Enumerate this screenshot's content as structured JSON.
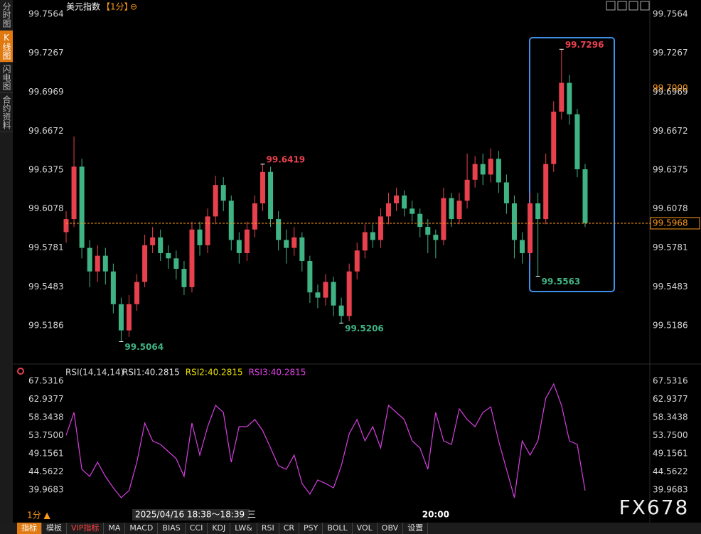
{
  "sidebar": [
    "分时图",
    "K线图",
    "闪电图",
    "合约资料"
  ],
  "toolbar": [
    "指标",
    "模板",
    "VIP指标",
    "MA",
    "MACD",
    "BIAS",
    "CCI",
    "KDJ",
    "LW&",
    "RSI",
    "CR",
    "PSY",
    "BOLL",
    "VOL",
    "OBV",
    "设置"
  ],
  "watermark": "FX678",
  "period_label": "1分 ▲",
  "chart_data": [
    {
      "type": "candlestick",
      "title": "美元指数",
      "period": "【1分】",
      "zoom_icon": "⊖",
      "up_color": "#e8414e",
      "down_color": "#3fb383",
      "open": [
        99.59,
        99.6,
        99.64,
        99.578,
        99.56,
        99.572,
        99.56,
        99.535,
        99.515,
        99.535,
        99.552,
        99.58,
        99.586,
        99.574,
        99.57,
        99.562,
        99.548,
        99.592,
        99.58,
        99.602,
        99.626,
        99.614,
        99.584,
        99.574,
        99.592,
        99.612,
        99.636,
        99.6,
        99.584,
        99.578,
        99.586,
        99.568,
        99.544,
        99.54,
        99.552,
        99.534,
        99.526,
        99.56,
        99.576,
        99.59,
        99.584,
        99.602,
        99.612,
        99.618,
        99.608,
        99.604,
        99.594,
        99.588,
        99.584,
        99.616,
        99.6,
        99.614,
        99.63,
        99.642,
        99.634,
        99.646,
        99.628,
        99.612,
        99.584,
        99.574,
        99.612,
        99.6,
        99.642,
        99.682,
        99.704,
        99.68,
        99.638
      ],
      "high": [
        99.606,
        99.663,
        99.646,
        99.584,
        99.58,
        99.578,
        99.566,
        99.54,
        99.542,
        99.558,
        99.588,
        99.594,
        99.592,
        99.58,
        99.576,
        99.568,
        99.598,
        99.598,
        99.608,
        99.633,
        99.632,
        99.618,
        99.59,
        99.598,
        99.618,
        99.6419,
        99.64,
        99.606,
        99.592,
        99.594,
        99.59,
        99.572,
        99.55,
        99.558,
        99.556,
        99.54,
        99.566,
        99.582,
        99.596,
        99.596,
        99.608,
        99.62,
        99.624,
        99.622,
        99.614,
        99.608,
        99.6,
        99.592,
        99.624,
        99.62,
        99.62,
        99.65,
        99.648,
        99.65,
        99.654,
        99.652,
        99.634,
        99.618,
        99.59,
        99.62,
        99.62,
        99.65,
        99.69,
        99.7296,
        99.71,
        99.684,
        99.642
      ],
      "low": [
        99.582,
        99.594,
        99.57,
        99.548,
        99.552,
        99.55,
        99.528,
        99.5064,
        99.51,
        99.53,
        99.548,
        99.574,
        99.568,
        99.562,
        99.554,
        99.542,
        99.544,
        99.572,
        99.574,
        99.596,
        99.606,
        99.576,
        99.566,
        99.568,
        99.586,
        99.606,
        99.594,
        99.576,
        99.566,
        99.572,
        99.56,
        99.536,
        99.532,
        99.534,
        99.526,
        99.5206,
        99.522,
        99.554,
        99.57,
        99.578,
        99.578,
        99.596,
        99.606,
        99.602,
        99.598,
        99.586,
        99.574,
        99.57,
        99.58,
        99.594,
        99.596,
        99.608,
        99.624,
        99.626,
        99.628,
        99.62,
        99.604,
        99.57,
        99.566,
        99.568,
        99.5563,
        99.596,
        99.636,
        99.676,
        99.672,
        99.632,
        99.594
      ],
      "close": [
        99.6,
        99.64,
        99.578,
        99.56,
        99.572,
        99.56,
        99.535,
        99.515,
        99.535,
        99.552,
        99.58,
        99.586,
        99.574,
        99.57,
        99.562,
        99.548,
        99.592,
        99.58,
        99.602,
        99.626,
        99.614,
        99.584,
        99.574,
        99.592,
        99.612,
        99.636,
        99.6,
        99.584,
        99.578,
        99.586,
        99.568,
        99.544,
        99.54,
        99.552,
        99.534,
        99.526,
        99.56,
        99.576,
        99.59,
        99.584,
        99.602,
        99.612,
        99.618,
        99.608,
        99.604,
        99.594,
        99.588,
        99.584,
        99.616,
        99.6,
        99.614,
        99.63,
        99.642,
        99.634,
        99.646,
        99.628,
        99.612,
        99.584,
        99.574,
        99.612,
        99.6,
        99.642,
        99.682,
        99.704,
        99.68,
        99.638,
        99.597
      ],
      "categories": [
        null,
        null,
        null,
        null,
        null,
        null,
        null,
        null,
        null,
        null,
        null,
        null,
        null,
        null,
        null,
        null,
        null,
        null,
        null,
        null,
        null,
        null,
        null,
        null,
        null,
        null,
        null,
        null,
        null,
        null,
        null,
        null,
        null,
        null,
        null,
        null,
        null,
        null,
        null,
        null,
        null,
        null,
        null,
        null,
        null,
        null,
        null,
        "20:00",
        null,
        null,
        null,
        null,
        null,
        null,
        null,
        null,
        null,
        null,
        null,
        null,
        null,
        null,
        null,
        null,
        null,
        null,
        null
      ],
      "crosshair_label": "2025/04/16 18:38～18:39 三",
      "ylim": [
        99.4931,
        99.7618
      ],
      "yticks": [
        99.7564,
        99.7267,
        99.6969,
        99.6672,
        99.6375,
        99.6078,
        99.5781,
        99.5483,
        99.5186
      ],
      "last_price": 99.5968,
      "last_price_color": "#ff9a1a",
      "ref_price": {
        "value": 99.7,
        "label": "99.7000"
      }
    },
    {
      "type": "line",
      "indicator": "RSI(14,14,14)",
      "readouts": [
        {
          "text": "RSI1:40.2815",
          "color": "#e0e0e0"
        },
        {
          "text": "RSI2:40.2815",
          "color": "#e8e000"
        },
        {
          "text": "RSI3:40.2815",
          "color": "#e040e8"
        }
      ],
      "color": "#d63fe0",
      "values": [
        53.8,
        59.6,
        45.2,
        43.4,
        47.0,
        43.4,
        40.5,
        38.0,
        39.8,
        47.0,
        56.9,
        52.4,
        51.5,
        49.7,
        47.9,
        43.4,
        56.9,
        48.8,
        56.0,
        61.4,
        59.6,
        47.0,
        56.0,
        56.0,
        57.8,
        55.0,
        50.6,
        46.1,
        45.2,
        48.8,
        41.6,
        38.9,
        42.5,
        41.6,
        40.5,
        46.1,
        54.2,
        57.8,
        52.4,
        56.0,
        50.6,
        61.4,
        59.6,
        57.8,
        52.4,
        50.6,
        45.2,
        59.6,
        52.4,
        51.5,
        60.5,
        57.8,
        56.0,
        59.6,
        61.0,
        52.4,
        45.2,
        38.0,
        52.4,
        48.8,
        52.4,
        63.2,
        66.8,
        61.4,
        52.4,
        51.5,
        39.8
      ],
      "ylim": [
        35.285,
        68.613
      ],
      "yticks": [
        67.5316,
        62.9377,
        58.3438,
        {
          "value": 53.75,
          "label": "53.7500"
        },
        49.1561,
        44.5622,
        39.9683
      ]
    }
  ]
}
